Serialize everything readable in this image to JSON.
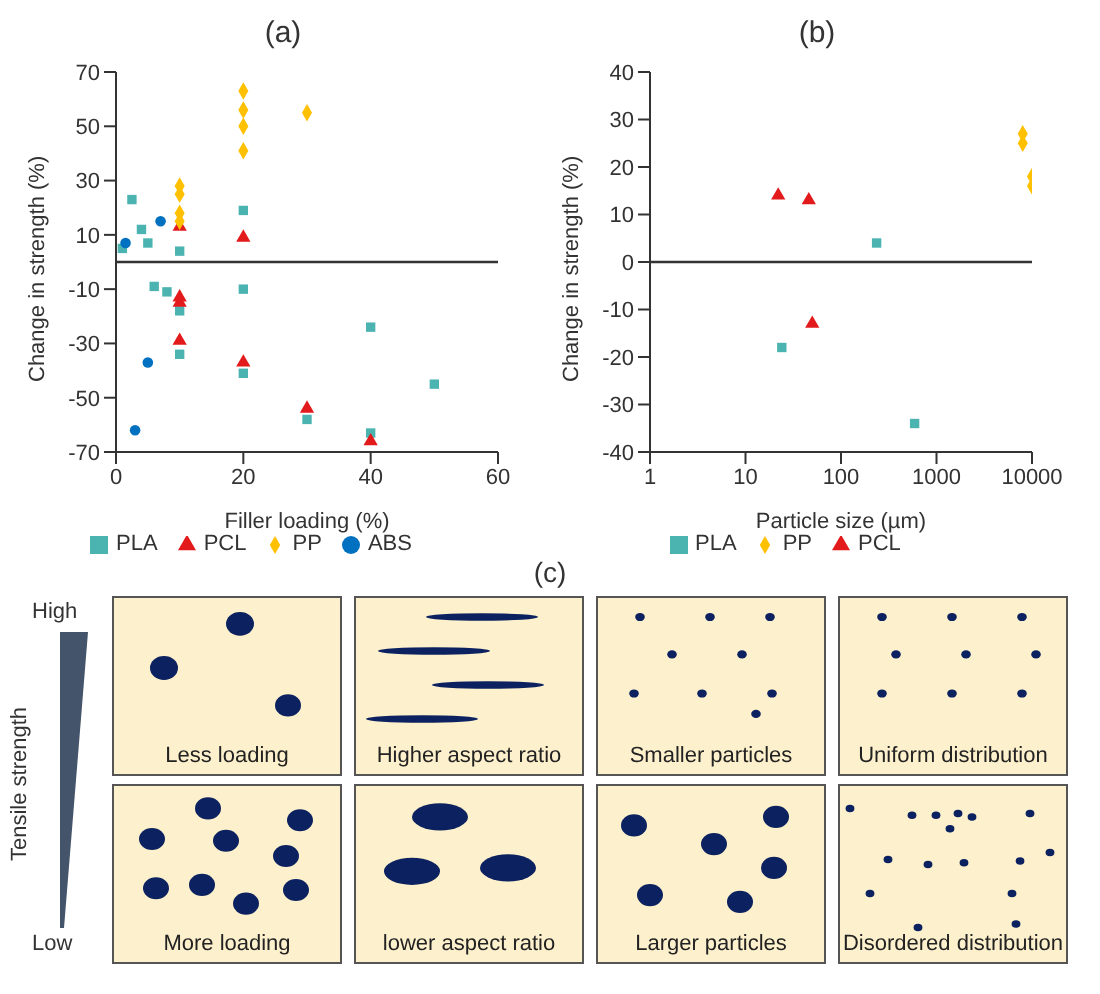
{
  "chart_data": [
    {
      "type": "scatter",
      "title": "(a)",
      "xlabel": "Filler loading (%)",
      "ylabel": "Change in strength (%)",
      "xlim": [
        0,
        60
      ],
      "xticks": [
        0,
        20,
        40,
        60
      ],
      "ylim": [
        -70,
        70
      ],
      "yticks": [
        -70,
        -50,
        -30,
        -10,
        10,
        30,
        50,
        70
      ],
      "legend": "bottom",
      "ref_lines": [
        {
          "axis": "y",
          "value": 0
        }
      ],
      "series": [
        {
          "name": "PLA",
          "color": "#4bb3b0",
          "marker": "square",
          "x": [
            1,
            2.5,
            4,
            5,
            6,
            8,
            10,
            10,
            10,
            20,
            20,
            20,
            30,
            40,
            40,
            50
          ],
          "values": [
            5,
            23,
            12,
            7,
            -9,
            -11,
            4,
            -18,
            -34,
            19,
            -10,
            -41,
            -58,
            -24,
            -63,
            -45
          ]
        },
        {
          "name": "PCL",
          "color": "#e31a1c",
          "marker": "triangle",
          "x": [
            10,
            10,
            10,
            10,
            20,
            20,
            30,
            40
          ],
          "values": [
            13,
            -13,
            -15,
            -29,
            9,
            -37,
            -54,
            -66
          ]
        },
        {
          "name": "PP",
          "color": "#ffc000",
          "marker": "diamond",
          "x": [
            10,
            10,
            10,
            10,
            20,
            20,
            20,
            20,
            30
          ],
          "values": [
            28,
            25,
            18,
            15,
            63,
            56,
            50,
            41,
            55
          ]
        },
        {
          "name": "ABS",
          "color": "#0070c0",
          "marker": "circle",
          "x": [
            1.5,
            7,
            5,
            3
          ],
          "values": [
            7,
            15,
            -37,
            -62
          ]
        }
      ]
    },
    {
      "type": "scatter",
      "title": "(b)",
      "xlabel": "Particle size (µm)",
      "ylabel": "Change in strength (%)",
      "log": "x",
      "xlim": [
        1,
        10000
      ],
      "xticks": [
        1,
        10,
        100,
        1000,
        10000
      ],
      "ylim": [
        -40,
        40
      ],
      "yticks": [
        -40,
        -30,
        -20,
        -10,
        0,
        10,
        20,
        30,
        40
      ],
      "legend": "bottom",
      "ref_lines": [
        {
          "axis": "y",
          "value": 0
        }
      ],
      "series": [
        {
          "name": "PLA",
          "color": "#4bb3b0",
          "marker": "square",
          "x": [
            24,
            236,
            590
          ],
          "values": [
            -18,
            4,
            -34
          ]
        },
        {
          "name": "PP",
          "color": "#ffc000",
          "marker": "diamond",
          "x": [
            8000,
            8000,
            10000,
            10000
          ],
          "values": [
            27,
            25,
            18,
            16
          ]
        },
        {
          "name": "PCL",
          "color": "#e31a1c",
          "marker": "triangle",
          "x": [
            22,
            46,
            50
          ],
          "values": [
            14,
            13,
            -13
          ]
        }
      ]
    },
    {
      "type": "other",
      "title": "(c)",
      "ylabel": "Tensile strength",
      "annotations": [
        "High",
        "Low",
        "Less loading",
        "Higher aspect ratio",
        "Smaller particles",
        "Uniform distribution",
        "More loading",
        "lower aspect ratio",
        "Larger particles",
        "Disordered distribution"
      ]
    }
  ]
}
